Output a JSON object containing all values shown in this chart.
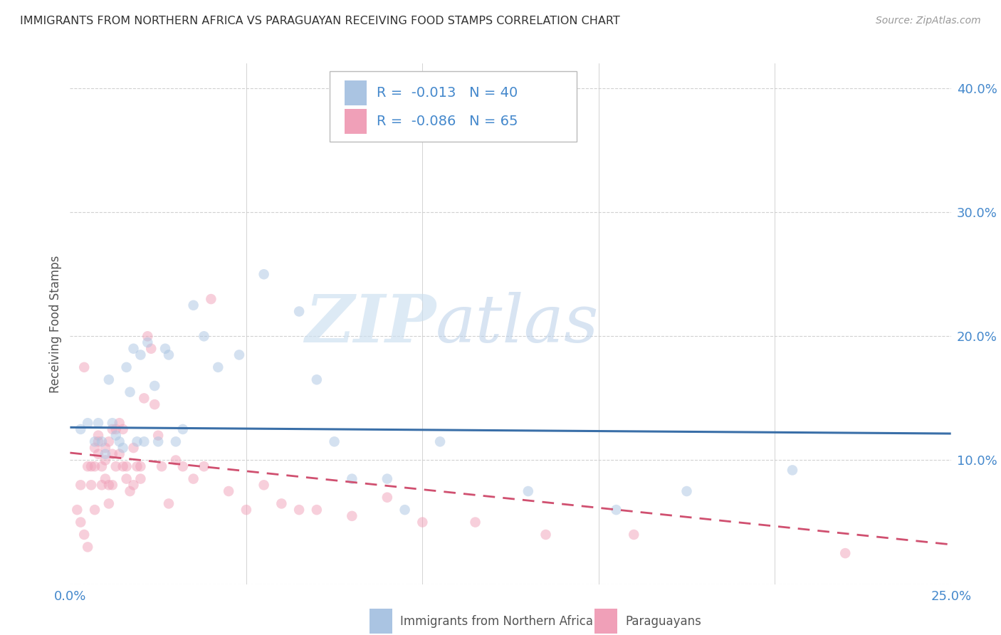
{
  "title": "IMMIGRANTS FROM NORTHERN AFRICA VS PARAGUAYAN RECEIVING FOOD STAMPS CORRELATION CHART",
  "source": "Source: ZipAtlas.com",
  "ylabel": "Receiving Food Stamps",
  "xlim": [
    0.0,
    0.25
  ],
  "ylim": [
    0.0,
    0.42
  ],
  "xticks": [
    0.0,
    0.05,
    0.1,
    0.15,
    0.2,
    0.25
  ],
  "yticks": [
    0.0,
    0.1,
    0.2,
    0.3,
    0.4
  ],
  "xtick_labels": [
    "0.0%",
    "",
    "",
    "",
    "",
    "25.0%"
  ],
  "ytick_labels": [
    "",
    "10.0%",
    "20.0%",
    "30.0%",
    "40.0%"
  ],
  "background_color": "#ffffff",
  "grid_color": "#cccccc",
  "blue_color": "#aac4e2",
  "pink_color": "#f0a0b8",
  "blue_line_color": "#3a6fa8",
  "pink_line_color": "#d05070",
  "title_color": "#333333",
  "axis_label_color": "#555555",
  "tick_color": "#4488cc",
  "legend_text_color": "#4488cc",
  "R_blue": -0.013,
  "N_blue": 40,
  "R_pink": -0.086,
  "N_pink": 65,
  "blue_x": [
    0.003,
    0.005,
    0.007,
    0.008,
    0.009,
    0.01,
    0.011,
    0.012,
    0.013,
    0.014,
    0.015,
    0.016,
    0.017,
    0.018,
    0.019,
    0.02,
    0.021,
    0.022,
    0.024,
    0.025,
    0.027,
    0.028,
    0.03,
    0.032,
    0.035,
    0.038,
    0.042,
    0.048,
    0.055,
    0.065,
    0.07,
    0.075,
    0.08,
    0.09,
    0.095,
    0.105,
    0.13,
    0.155,
    0.175,
    0.205
  ],
  "blue_y": [
    0.125,
    0.13,
    0.115,
    0.13,
    0.115,
    0.105,
    0.165,
    0.13,
    0.12,
    0.115,
    0.11,
    0.175,
    0.155,
    0.19,
    0.115,
    0.185,
    0.115,
    0.195,
    0.16,
    0.115,
    0.19,
    0.185,
    0.115,
    0.125,
    0.225,
    0.2,
    0.175,
    0.185,
    0.25,
    0.22,
    0.165,
    0.115,
    0.085,
    0.085,
    0.06,
    0.115,
    0.075,
    0.06,
    0.075,
    0.092
  ],
  "pink_x": [
    0.002,
    0.003,
    0.003,
    0.004,
    0.004,
    0.005,
    0.005,
    0.006,
    0.006,
    0.007,
    0.007,
    0.007,
    0.008,
    0.008,
    0.008,
    0.009,
    0.009,
    0.01,
    0.01,
    0.01,
    0.011,
    0.011,
    0.011,
    0.012,
    0.012,
    0.012,
    0.013,
    0.013,
    0.014,
    0.014,
    0.015,
    0.015,
    0.016,
    0.016,
    0.017,
    0.018,
    0.018,
    0.019,
    0.02,
    0.02,
    0.021,
    0.022,
    0.023,
    0.024,
    0.025,
    0.026,
    0.028,
    0.03,
    0.032,
    0.035,
    0.038,
    0.04,
    0.045,
    0.05,
    0.055,
    0.06,
    0.065,
    0.07,
    0.08,
    0.09,
    0.1,
    0.115,
    0.135,
    0.16,
    0.22
  ],
  "pink_y": [
    0.06,
    0.08,
    0.05,
    0.04,
    0.175,
    0.095,
    0.03,
    0.095,
    0.08,
    0.11,
    0.095,
    0.06,
    0.12,
    0.105,
    0.115,
    0.095,
    0.08,
    0.1,
    0.085,
    0.11,
    0.08,
    0.115,
    0.065,
    0.08,
    0.105,
    0.125,
    0.125,
    0.095,
    0.105,
    0.13,
    0.125,
    0.095,
    0.095,
    0.085,
    0.075,
    0.08,
    0.11,
    0.095,
    0.095,
    0.085,
    0.15,
    0.2,
    0.19,
    0.145,
    0.12,
    0.095,
    0.065,
    0.1,
    0.095,
    0.085,
    0.095,
    0.23,
    0.075,
    0.06,
    0.08,
    0.065,
    0.06,
    0.06,
    0.055,
    0.07,
    0.05,
    0.05,
    0.04,
    0.04,
    0.025
  ],
  "legend_label_blue": "Immigrants from Northern Africa",
  "legend_label_pink": "Paraguayans",
  "watermark_zip": "ZIP",
  "watermark_atlas": "atlas",
  "marker_size": 110,
  "marker_alpha": 0.5,
  "blue_trend_x": [
    0.0,
    0.25
  ],
  "blue_trend_y": [
    0.1265,
    0.1215
  ],
  "pink_trend_x": [
    0.0,
    0.25
  ],
  "pink_trend_y": [
    0.106,
    0.032
  ]
}
